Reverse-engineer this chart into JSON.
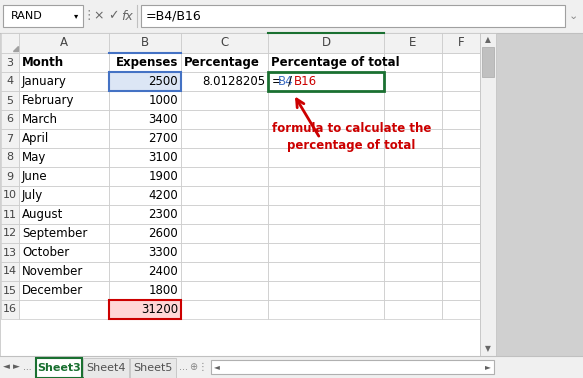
{
  "name_box": "RAND",
  "formula_bar": "=B4/B16",
  "months": [
    "January",
    "February",
    "March",
    "April",
    "May",
    "June",
    "July",
    "August",
    "September",
    "October",
    "November",
    "December"
  ],
  "expenses": [
    2500,
    1000,
    3400,
    2700,
    3100,
    1900,
    4200,
    2300,
    2600,
    3300,
    2400,
    1800
  ],
  "total": 31200,
  "percentage_value": "8.0128205",
  "annotation_text": "formula to calculate the\npercentage of total",
  "annotation_color": "#cc0000",
  "active_sheet": "Sheet3",
  "bg_color": "#ffffff",
  "grid_color": "#c8c8c8",
  "header_bg": "#f2f2f2",
  "toolbar_bg": "#f0f0f0",
  "selected_D4_border": "#1a7031",
  "selected_B4_bg": "#dce6f5",
  "selected_B4_border": "#4472c4",
  "selected_B16_bg": "#ffd7d7",
  "selected_B16_border": "#cc0000",
  "active_tab_color": "#1a7031",
  "formula_eq_color": "#000000",
  "formula_B4_color": "#4472c4",
  "formula_slash_color": "#000000",
  "formula_B16_color": "#cc0000"
}
